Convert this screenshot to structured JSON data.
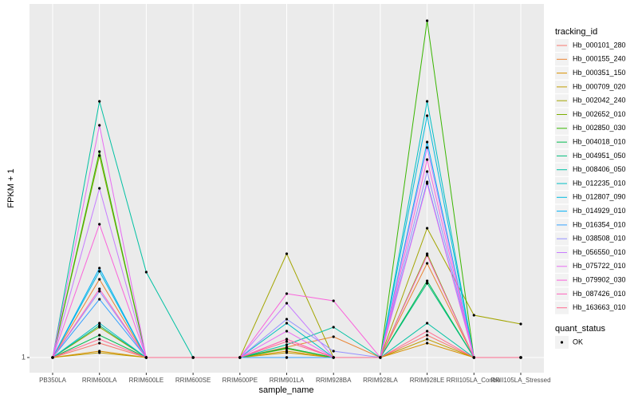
{
  "chart_data": {
    "type": "line",
    "x_label": "sample_name",
    "y_label": "FPKM + 1",
    "legend_title": "tracking_id",
    "categories": [
      "PB350LA",
      "RRIM600LA",
      "RRIM600LE",
      "RRIM600SE",
      "RRIM600PE",
      "RRIM901LA",
      "RRIM928BA",
      "RRIM928LA",
      "RRIM928LE",
      "RRII105LA_Control",
      "RRII105LA_Stressed"
    ],
    "ylim": [
      0.05,
      23.15
    ],
    "yticks": [
      1
    ],
    "grid": true,
    "series": [
      {
        "name": "Hb_000101_280",
        "color": "#F8766D",
        "values": [
          1,
          1.9,
          1,
          1,
          1,
          2.15,
          1,
          1,
          2.4,
          1,
          1
        ]
      },
      {
        "name": "Hb_000155_240",
        "color": "#EA8331",
        "values": [
          1,
          5.9,
          1,
          1,
          1,
          1.65,
          2.3,
          1,
          6.9,
          1,
          1
        ]
      },
      {
        "name": "Hb_000351_150",
        "color": "#D89000",
        "values": [
          1,
          1.4,
          1,
          1,
          1,
          1.4,
          1,
          1,
          1.9,
          1,
          1
        ]
      },
      {
        "name": "Hb_000709_020",
        "color": "#C09B00",
        "values": [
          1,
          1.3,
          1,
          1,
          1,
          1.3,
          1,
          1,
          2.15,
          1,
          1
        ]
      },
      {
        "name": "Hb_002042_240",
        "color": "#A3A500",
        "values": [
          1,
          2.9,
          1,
          1,
          1,
          7.5,
          1,
          1,
          9.1,
          3.65,
          3.1
        ]
      },
      {
        "name": "Hb_002652_010",
        "color": "#7CAE00",
        "values": [
          1,
          13.65,
          1,
          1,
          1,
          1.55,
          1,
          1,
          7.5,
          1,
          1
        ]
      },
      {
        "name": "Hb_002850_030",
        "color": "#39B600",
        "values": [
          1,
          13.9,
          1,
          1,
          1,
          1.6,
          1,
          1,
          22.1,
          1,
          1
        ]
      },
      {
        "name": "Hb_004018_010",
        "color": "#00BB4E",
        "values": [
          1,
          2.4,
          1,
          1,
          1,
          1.6,
          1,
          1,
          5.8,
          1,
          1
        ]
      },
      {
        "name": "Hb_004951_050",
        "color": "#00BF7D",
        "values": [
          1,
          3,
          1,
          1,
          1,
          1,
          1,
          1,
          5.65,
          1,
          1
        ]
      },
      {
        "name": "Hb_008406_050",
        "color": "#00C1A3",
        "values": [
          1,
          17.05,
          6.35,
          1,
          1,
          1.8,
          2.9,
          1,
          3.15,
          1,
          1
        ]
      },
      {
        "name": "Hb_012235_010",
        "color": "#00BFC4",
        "values": [
          1,
          3.15,
          1,
          1,
          1,
          3.15,
          1,
          1,
          17.05,
          1,
          1
        ]
      },
      {
        "name": "Hb_012807_090",
        "color": "#00BAE0",
        "values": [
          1,
          6.4,
          1,
          1,
          1,
          1,
          1,
          1,
          16.15,
          1,
          1
        ]
      },
      {
        "name": "Hb_014929_010",
        "color": "#00B0F6",
        "values": [
          1,
          6.6,
          1,
          1,
          1,
          1,
          1,
          1,
          14.5,
          1,
          1
        ]
      },
      {
        "name": "Hb_016354_010",
        "color": "#35A2FF",
        "values": [
          1,
          4.65,
          1,
          1,
          1,
          1,
          1,
          1,
          12,
          1,
          1
        ]
      },
      {
        "name": "Hb_038508_010",
        "color": "#9590FF",
        "values": [
          1,
          5.15,
          1,
          1,
          1,
          3.4,
          1.4,
          1,
          12.65,
          1,
          1
        ]
      },
      {
        "name": "Hb_056550_010",
        "color": "#C77CFF",
        "values": [
          1,
          11.6,
          1,
          1,
          1,
          4.4,
          1,
          1,
          14.15,
          1,
          1
        ]
      },
      {
        "name": "Hb_075722_010",
        "color": "#E76BF3",
        "values": [
          1,
          15.55,
          1,
          1,
          1,
          2.65,
          1,
          1,
          11.9,
          1,
          1
        ]
      },
      {
        "name": "Hb_079902_030",
        "color": "#FA62DB",
        "values": [
          1,
          9.35,
          1,
          1,
          1,
          5,
          4.55,
          1,
          13.4,
          1,
          1
        ]
      },
      {
        "name": "Hb_087426_010",
        "color": "#FF62BC",
        "values": [
          1,
          5.3,
          1,
          1,
          1,
          2.15,
          1,
          1,
          7.4,
          1,
          1
        ]
      },
      {
        "name": "Hb_163663_010",
        "color": "#FF6C91",
        "values": [
          1,
          2.15,
          1,
          1,
          1,
          2,
          1,
          1,
          2.65,
          1,
          1
        ]
      }
    ],
    "point_legend": {
      "title": "quant_status",
      "levels": [
        "OK"
      ]
    }
  }
}
